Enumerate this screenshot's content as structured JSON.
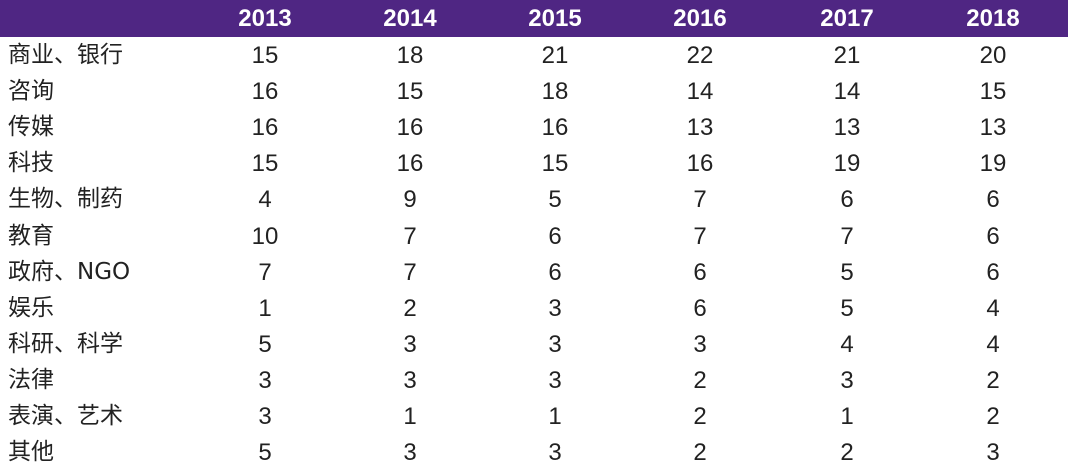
{
  "chart_data": {
    "type": "table",
    "columns": [
      "2013",
      "2014",
      "2015",
      "2016",
      "2017",
      "2018"
    ],
    "rows": [
      {
        "label": "商业、银行",
        "values": [
          15,
          18,
          21,
          22,
          21,
          20
        ]
      },
      {
        "label": "咨询",
        "values": [
          16,
          15,
          18,
          14,
          14,
          15
        ]
      },
      {
        "label": "传媒",
        "values": [
          16,
          16,
          16,
          13,
          13,
          13
        ]
      },
      {
        "label": "科技",
        "values": [
          15,
          16,
          15,
          16,
          19,
          19
        ]
      },
      {
        "label": "生物、制药",
        "values": [
          4,
          9,
          5,
          7,
          6,
          6
        ]
      },
      {
        "label": "教育",
        "values": [
          10,
          7,
          6,
          7,
          7,
          6
        ]
      },
      {
        "label": "政府、NGO",
        "values": [
          7,
          7,
          6,
          6,
          5,
          6
        ]
      },
      {
        "label": "娱乐",
        "values": [
          1,
          2,
          3,
          6,
          5,
          4
        ]
      },
      {
        "label": "科研、科学",
        "values": [
          5,
          3,
          3,
          3,
          4,
          4
        ]
      },
      {
        "label": "法律",
        "values": [
          3,
          3,
          3,
          2,
          3,
          2
        ]
      },
      {
        "label": "表演、艺术",
        "values": [
          3,
          1,
          1,
          2,
          1,
          2
        ]
      },
      {
        "label": "其他",
        "values": [
          5,
          3,
          3,
          2,
          2,
          3
        ]
      }
    ],
    "header_color": "#4f2683",
    "header_text_color": "#ffffff",
    "text_color": "#222222"
  }
}
